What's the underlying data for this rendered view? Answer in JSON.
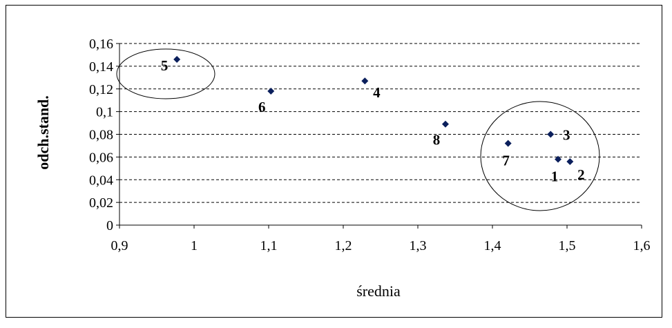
{
  "chart_data": {
    "type": "scatter",
    "title": "",
    "xlabel": "średnia",
    "ylabel": "odch.stand.",
    "xlim": [
      0.9,
      1.6
    ],
    "ylim": [
      0,
      0.16
    ],
    "x_ticks": [
      0.9,
      1.0,
      1.1,
      1.2,
      1.3,
      1.4,
      1.5,
      1.6
    ],
    "x_tick_labels": [
      "0,9",
      "1",
      "1,1",
      "1,2",
      "1,3",
      "1,4",
      "1,5",
      "1,6"
    ],
    "y_ticks": [
      0,
      0.02,
      0.04,
      0.06,
      0.08,
      0.1,
      0.12,
      0.14,
      0.16
    ],
    "y_tick_labels": [
      "0",
      "0,02",
      "0,04",
      "0,06",
      "0,08",
      "0,1",
      "0,12",
      "0,14",
      "0,16"
    ],
    "grid": "horizontal dashed",
    "marker": "diamond",
    "marker_color": "#0b1f5c",
    "points": [
      {
        "label": "1",
        "x": 1.488,
        "y": 0.058
      },
      {
        "label": "2",
        "x": 1.504,
        "y": 0.056
      },
      {
        "label": "3",
        "x": 1.478,
        "y": 0.08
      },
      {
        "label": "4",
        "x": 1.229,
        "y": 0.127
      },
      {
        "label": "5",
        "x": 0.977,
        "y": 0.146
      },
      {
        "label": "6",
        "x": 1.103,
        "y": 0.118
      },
      {
        "label": "7",
        "x": 1.421,
        "y": 0.072
      },
      {
        "label": "8",
        "x": 1.337,
        "y": 0.089
      }
    ],
    "annotations": [
      {
        "type": "ellipse",
        "encloses": [
          "5"
        ]
      },
      {
        "type": "ellipse",
        "encloses": [
          "1",
          "2",
          "3",
          "7"
        ]
      }
    ]
  }
}
